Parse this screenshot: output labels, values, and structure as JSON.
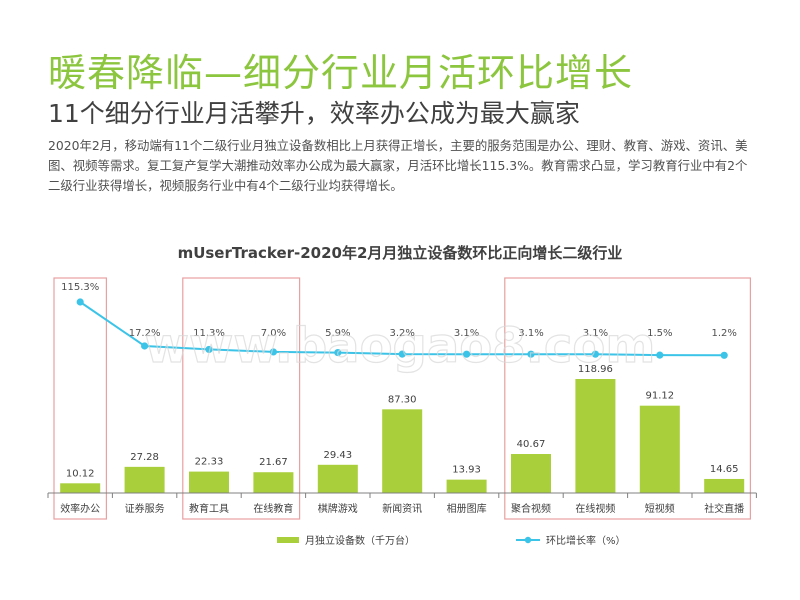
{
  "header": {
    "title": "暖春降临—细分行业月活环比增长",
    "subtitle": "11个细分行业月活攀升，效率办公成为最大赢家",
    "body": "2020年2月，移动端有11个二级行业月独立设备数相比上月获得正增长，主要的服务范围是办公、理财、教育、游戏、资讯、美图、视频等需求。复工复产复学大潮推动效率办公成为最大赢家，月活环比增长115.3%。教育需求凸显，学习教育行业中有2个二级行业获得增长，视频服务行业中有4个二级行业均获得增长。"
  },
  "colors": {
    "title": "#8cc63f",
    "bar": "#a9cf3a",
    "line": "#3cc4e8",
    "highlight_box": "#e8a0a0"
  },
  "chart_data": {
    "type": "bar",
    "title": "mUserTracker-2020年2月月独立设备数环比正向增长二级行业",
    "categories": [
      "效率办公",
      "证券服务",
      "教育工具",
      "在线教育",
      "棋牌游戏",
      "新闻资讯",
      "相册图库",
      "聚合视频",
      "在线视频",
      "短视频",
      "社交直播"
    ],
    "series": [
      {
        "name": "月独立设备数（千万台）",
        "kind": "bar",
        "values": [
          10.12,
          27.28,
          22.33,
          21.67,
          29.43,
          87.3,
          13.93,
          40.67,
          118.96,
          91.12,
          14.65
        ],
        "labels": [
          "10.12",
          "27.28",
          "22.33",
          "21.67",
          "29.43",
          "87.30",
          "13.93",
          "40.67",
          "118.96",
          "91.12",
          "14.65"
        ]
      },
      {
        "name": "环比增长率（%）",
        "kind": "line",
        "values": [
          115.3,
          17.2,
          11.3,
          7.0,
          5.9,
          3.2,
          3.1,
          3.1,
          3.1,
          1.5,
          1.2
        ],
        "labels": [
          "115.3%",
          "17.2%",
          "11.3%",
          "7.0%",
          "5.9%",
          "3.2%",
          "3.1%",
          "3.1%",
          "3.1%",
          "1.5%",
          "1.2%"
        ]
      }
    ],
    "highlight_groups": [
      [
        0,
        0
      ],
      [
        2,
        3
      ],
      [
        7,
        10
      ]
    ],
    "legend_position": "bottom",
    "grid": false,
    "watermark": "www.baogao8.com"
  }
}
